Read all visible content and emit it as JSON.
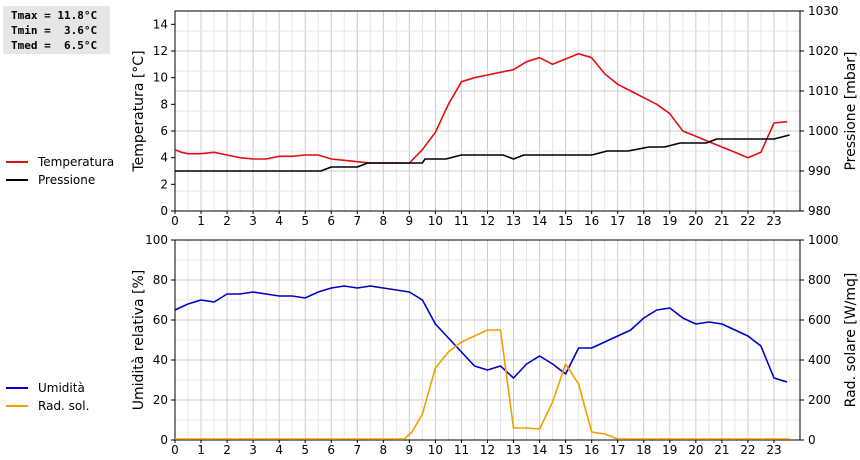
{
  "stats": {
    "lines": [
      "Tmax = 11.8°C",
      "Tmin =  3.6°C",
      "Tmed =  6.5°C"
    ]
  },
  "colors": {
    "temperature": "#e01010",
    "pressure": "#000000",
    "humidity": "#0000c8",
    "solar": "#f0a000"
  },
  "chart_data": [
    {
      "type": "line",
      "ylabel": "Temperatura [°C]",
      "y2label": "Pressione [mbar]",
      "xlim": [
        0,
        24
      ],
      "ylim": [
        0,
        15
      ],
      "y2lim": [
        980,
        1030
      ],
      "xticks": [
        "0",
        "1",
        "2",
        "3",
        "4",
        "5",
        "6",
        "7",
        "8",
        "9",
        "10",
        "11",
        "12",
        "13",
        "14",
        "15",
        "16",
        "17",
        "18",
        "19",
        "20",
        "21",
        "22",
        "23"
      ],
      "yticks": [
        "0",
        "2",
        "4",
        "6",
        "8",
        "10",
        "12",
        "14"
      ],
      "y2ticks": [
        "980",
        "990",
        "1000",
        "1010",
        "1020",
        "1030"
      ],
      "grid": true,
      "legend_position": "left",
      "series": [
        {
          "name": "Temperatura",
          "axis": "left",
          "x": [
            0,
            0.25,
            0.5,
            1,
            1.5,
            2,
            2.5,
            3,
            3.5,
            4,
            4.5,
            5,
            5.5,
            6,
            6.5,
            7,
            7.5,
            8,
            8.5,
            9,
            9.5,
            10,
            10.5,
            11,
            11.5,
            12,
            12.5,
            13,
            13.5,
            14,
            14.5,
            15,
            15.5,
            16,
            16.5,
            17,
            17.5,
            18,
            18.5,
            19,
            19.5,
            20,
            20.5,
            21,
            21.5,
            22,
            22.5,
            23,
            23.5
          ],
          "y": [
            4.6,
            4.4,
            4.3,
            4.3,
            4.4,
            4.2,
            4.0,
            3.9,
            3.9,
            4.1,
            4.1,
            4.2,
            4.2,
            3.9,
            3.8,
            3.7,
            3.6,
            3.6,
            3.6,
            3.6,
            4.6,
            5.9,
            8.0,
            9.7,
            10.0,
            10.2,
            10.4,
            10.6,
            11.2,
            11.5,
            11.0,
            11.4,
            11.8,
            11.5,
            10.3,
            9.5,
            9.0,
            8.5,
            8.0,
            7.3,
            6.0,
            5.6,
            5.2,
            4.8,
            4.4,
            4.0,
            4.4,
            6.6,
            6.7
          ]
        },
        {
          "name": "Pressione",
          "axis": "right",
          "x": [
            0,
            5.6,
            6,
            7,
            7.4,
            9.5,
            9.6,
            10.4,
            11,
            12.6,
            13,
            13.4,
            14,
            16,
            16.6,
            17.4,
            18.2,
            18.8,
            19.4,
            20,
            20.4,
            20.8,
            21.1,
            23,
            23.6
          ],
          "y": [
            990,
            990,
            991,
            991,
            992,
            992,
            993,
            993,
            994,
            994,
            993,
            994,
            994,
            994,
            995,
            995,
            996,
            996,
            997,
            997,
            997,
            998,
            998,
            998,
            999
          ]
        }
      ]
    },
    {
      "type": "line",
      "ylabel": "Umidità relativa [%]",
      "y2label": "Rad. solare [W/mq]",
      "xlim": [
        0,
        24
      ],
      "ylim": [
        0,
        100
      ],
      "y2lim": [
        0,
        1000
      ],
      "xticks": [
        "0",
        "1",
        "2",
        "3",
        "4",
        "5",
        "6",
        "7",
        "8",
        "9",
        "10",
        "11",
        "12",
        "13",
        "14",
        "15",
        "16",
        "17",
        "18",
        "19",
        "20",
        "21",
        "22",
        "23"
      ],
      "yticks": [
        "0",
        "20",
        "40",
        "60",
        "80",
        "100"
      ],
      "y2ticks": [
        "0",
        "200",
        "400",
        "600",
        "800",
        "1000"
      ],
      "grid": true,
      "legend_position": "left",
      "series": [
        {
          "name": "Umidità",
          "axis": "left",
          "x": [
            0,
            0.5,
            1,
            1.5,
            2,
            2.5,
            3,
            3.5,
            4,
            4.5,
            5,
            5.5,
            6,
            6.5,
            7,
            7.5,
            8,
            8.5,
            9,
            9.5,
            10,
            10.5,
            11,
            11.5,
            12,
            12.5,
            13,
            13.5,
            14,
            14.5,
            15,
            15.5,
            16,
            16.5,
            17,
            17.5,
            18,
            18.5,
            19,
            19.5,
            20,
            20.5,
            21,
            21.5,
            22,
            22.5,
            23,
            23.5
          ],
          "y": [
            65,
            68,
            70,
            69,
            73,
            73,
            74,
            73,
            72,
            72,
            71,
            74,
            76,
            77,
            76,
            77,
            76,
            75,
            74,
            70,
            58,
            51,
            44,
            37,
            35,
            37,
            31,
            38,
            42,
            38,
            33,
            46,
            46,
            49,
            52,
            55,
            61,
            65,
            66,
            61,
            58,
            59,
            58,
            55,
            52,
            47,
            31,
            29
          ]
        },
        {
          "name": "Rad. sol.",
          "axis": "right",
          "x": [
            0,
            8.4,
            8.8,
            9.1,
            9.5,
            10,
            10.5,
            11,
            11.5,
            12,
            12.5,
            13,
            13.5,
            14,
            14.5,
            15,
            15.5,
            16,
            16.5,
            17,
            18,
            20,
            22,
            23.6
          ],
          "y": [
            5,
            5,
            5,
            40,
            130,
            360,
            440,
            490,
            520,
            550,
            550,
            60,
            60,
            55,
            190,
            380,
            280,
            40,
            30,
            5,
            5,
            5,
            5,
            5
          ]
        }
      ]
    }
  ]
}
